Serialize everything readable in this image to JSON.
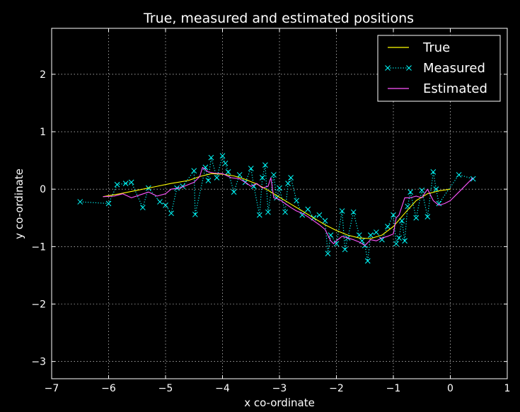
{
  "chart_data": {
    "type": "line",
    "title": "True, measured and estimated positions",
    "xlabel": "x co-ordinate",
    "ylabel": "y co-ordinate",
    "xlim": [
      -7,
      1
    ],
    "ylim": [
      -3.3,
      2.8
    ],
    "xticks": [
      -7,
      -6,
      -5,
      -4,
      -3,
      -2,
      -1,
      0,
      1
    ],
    "yticks": [
      -3,
      -2,
      -1,
      0,
      1,
      2
    ],
    "xtick_labels": [
      "−7",
      "−6",
      "−5",
      "−4",
      "−3",
      "−2",
      "−1",
      "0",
      "1"
    ],
    "ytick_labels": [
      "−3",
      "−2",
      "−1",
      "0",
      "1",
      "2"
    ],
    "grid": true,
    "legend_position": "top-right",
    "background": "#000000",
    "foreground": "#ffffff",
    "series": [
      {
        "name": "True",
        "color": "#ffff00",
        "style": "solid",
        "marker": "none",
        "x": [
          -6.1,
          -5.8,
          -5.5,
          -5.2,
          -4.9,
          -4.6,
          -4.4,
          -4.2,
          -4.0,
          -3.8,
          -3.6,
          -3.4,
          -3.2,
          -3.0,
          -2.8,
          -2.6,
          -2.4,
          -2.2,
          -2.0,
          -1.8,
          -1.6,
          -1.4,
          -1.2,
          -1.0,
          -0.8,
          -0.6,
          -0.4,
          -0.2,
          0.0
        ],
        "y": [
          -0.13,
          -0.08,
          -0.02,
          0.04,
          0.1,
          0.15,
          0.22,
          0.27,
          0.26,
          0.23,
          0.17,
          0.09,
          -0.02,
          -0.14,
          -0.26,
          -0.38,
          -0.5,
          -0.62,
          -0.72,
          -0.8,
          -0.85,
          -0.86,
          -0.8,
          -0.65,
          -0.42,
          -0.2,
          -0.08,
          -0.03,
          0.0
        ]
      },
      {
        "name": "Measured",
        "color": "#00ffff",
        "style": "dotted",
        "marker": "x",
        "x": [
          -6.5,
          -6.0,
          -5.85,
          -5.7,
          -5.6,
          -5.4,
          -5.3,
          -5.1,
          -5.0,
          -4.9,
          -4.8,
          -4.7,
          -4.5,
          -4.48,
          -4.3,
          -4.25,
          -4.2,
          -4.1,
          -4.0,
          -3.95,
          -3.9,
          -3.8,
          -3.7,
          -3.6,
          -3.5,
          -3.45,
          -3.35,
          -3.3,
          -3.25,
          -3.2,
          -3.1,
          -3.05,
          -3.0,
          -2.9,
          -2.85,
          -2.8,
          -2.7,
          -2.6,
          -2.5,
          -2.4,
          -2.3,
          -2.2,
          -2.15,
          -2.1,
          -2.0,
          -1.9,
          -1.85,
          -1.8,
          -1.7,
          -1.6,
          -1.55,
          -1.5,
          -1.45,
          -1.4,
          -1.3,
          -1.2,
          -1.1,
          -1.0,
          -0.95,
          -0.9,
          -0.85,
          -0.8,
          -0.75,
          -0.7,
          -0.6,
          -0.5,
          -0.4,
          -0.3,
          -0.25,
          -0.2,
          0.15,
          0.4
        ],
        "y": [
          -0.22,
          -0.25,
          0.08,
          0.1,
          0.12,
          -0.32,
          0.02,
          -0.22,
          -0.28,
          -0.42,
          0.02,
          0.05,
          0.32,
          -0.44,
          0.38,
          0.15,
          0.55,
          0.2,
          0.58,
          0.45,
          0.3,
          -0.05,
          0.25,
          0.12,
          0.36,
          0.05,
          -0.45,
          0.2,
          0.42,
          -0.4,
          0.25,
          -0.15,
          0.02,
          -0.4,
          0.1,
          0.2,
          -0.2,
          -0.45,
          -0.35,
          -0.5,
          -0.45,
          -0.55,
          -1.12,
          -0.8,
          -0.95,
          -0.38,
          -1.05,
          -0.85,
          -0.4,
          -0.8,
          -0.9,
          -0.98,
          -1.25,
          -0.8,
          -0.75,
          -0.88,
          -0.65,
          -0.45,
          -0.95,
          -0.85,
          -0.55,
          -0.9,
          -0.3,
          -0.05,
          -0.5,
          -0.02,
          -0.48,
          0.3,
          0.0,
          -0.25,
          0.25,
          0.18
        ]
      },
      {
        "name": "Estimated",
        "color": "#ff55ff",
        "style": "solid",
        "marker": "none",
        "x": [
          -6.1,
          -5.9,
          -5.75,
          -5.6,
          -5.45,
          -5.3,
          -5.15,
          -5.0,
          -4.9,
          -4.75,
          -4.6,
          -4.5,
          -4.4,
          -4.35,
          -4.25,
          -4.15,
          -4.0,
          -3.85,
          -3.7,
          -3.6,
          -3.5,
          -3.4,
          -3.3,
          -3.2,
          -3.15,
          -3.1,
          -3.0,
          -2.9,
          -2.8,
          -2.7,
          -2.6,
          -2.5,
          -2.4,
          -2.3,
          -2.2,
          -2.1,
          -2.05,
          -2.0,
          -1.9,
          -1.8,
          -1.7,
          -1.6,
          -1.5,
          -1.4,
          -1.3,
          -1.2,
          -1.1,
          -1.0,
          -0.95,
          -0.9,
          -0.85,
          -0.8,
          -0.7,
          -0.6,
          -0.5,
          -0.4,
          -0.3,
          -0.2,
          -0.1,
          0.0,
          0.15,
          0.4
        ],
        "y": [
          -0.13,
          -0.12,
          -0.08,
          -0.15,
          -0.1,
          -0.05,
          -0.12,
          -0.08,
          0.0,
          0.02,
          0.08,
          0.12,
          0.22,
          0.38,
          0.3,
          0.28,
          0.27,
          0.2,
          0.18,
          0.12,
          0.05,
          0.1,
          0.02,
          0.05,
          0.2,
          -0.15,
          -0.18,
          -0.25,
          -0.32,
          -0.38,
          -0.42,
          -0.48,
          -0.55,
          -0.62,
          -0.7,
          -0.9,
          -0.95,
          -0.9,
          -0.82,
          -0.85,
          -0.88,
          -0.92,
          -0.98,
          -0.88,
          -0.9,
          -0.85,
          -0.82,
          -0.78,
          -0.5,
          -0.45,
          -0.3,
          -0.15,
          -0.15,
          -0.12,
          -0.15,
          0.0,
          -0.2,
          -0.28,
          -0.25,
          -0.2,
          -0.05,
          0.2
        ]
      }
    ]
  }
}
